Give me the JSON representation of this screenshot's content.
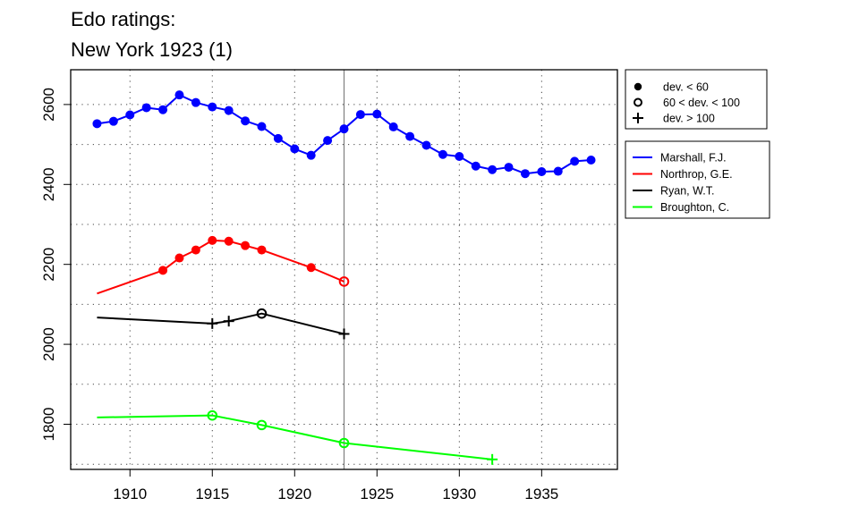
{
  "chart_data": {
    "type": "line",
    "title_lines": [
      "Edo ratings:",
      "New York 1923 (1)"
    ],
    "xlabel": "",
    "ylabel": "",
    "xlim": [
      1906.4,
      1939.6
    ],
    "ylim": [
      1687,
      2687
    ],
    "x_ticks": [
      1910,
      1915,
      1920,
      1925,
      1930,
      1935
    ],
    "y_ticks": [
      1800,
      2000,
      2200,
      2400,
      2600
    ],
    "grid": true,
    "vline_x": 1923,
    "marker_legend": [
      {
        "symbol": "filled-circle",
        "label": "dev. < 60"
      },
      {
        "symbol": "open-circle",
        "label": "60 < dev. < 100"
      },
      {
        "symbol": "plus",
        "label": "dev. > 100"
      }
    ],
    "series": [
      {
        "name": "Marshall, F.J.",
        "color": "#0000ff",
        "points": [
          {
            "x": 1908,
            "y": 2552,
            "m": "filled"
          },
          {
            "x": 1909,
            "y": 2558,
            "m": "filled"
          },
          {
            "x": 1910,
            "y": 2574,
            "m": "filled"
          },
          {
            "x": 1911,
            "y": 2592,
            "m": "filled"
          },
          {
            "x": 1912,
            "y": 2587,
            "m": "filled"
          },
          {
            "x": 1913,
            "y": 2624,
            "m": "filled"
          },
          {
            "x": 1914,
            "y": 2605,
            "m": "filled"
          },
          {
            "x": 1915,
            "y": 2594,
            "m": "filled"
          },
          {
            "x": 1916,
            "y": 2585,
            "m": "filled"
          },
          {
            "x": 1917,
            "y": 2559,
            "m": "filled"
          },
          {
            "x": 1918,
            "y": 2545,
            "m": "filled"
          },
          {
            "x": 1919,
            "y": 2515,
            "m": "filled"
          },
          {
            "x": 1920,
            "y": 2489,
            "m": "filled"
          },
          {
            "x": 1921,
            "y": 2473,
            "m": "filled"
          },
          {
            "x": 1922,
            "y": 2510,
            "m": "filled"
          },
          {
            "x": 1923,
            "y": 2539,
            "m": "filled"
          },
          {
            "x": 1924,
            "y": 2575,
            "m": "filled"
          },
          {
            "x": 1925,
            "y": 2576,
            "m": "filled"
          },
          {
            "x": 1926,
            "y": 2544,
            "m": "filled"
          },
          {
            "x": 1927,
            "y": 2520,
            "m": "filled"
          },
          {
            "x": 1928,
            "y": 2498,
            "m": "filled"
          },
          {
            "x": 1929,
            "y": 2475,
            "m": "filled"
          },
          {
            "x": 1930,
            "y": 2470,
            "m": "filled"
          },
          {
            "x": 1931,
            "y": 2446,
            "m": "filled"
          },
          {
            "x": 1932,
            "y": 2437,
            "m": "filled"
          },
          {
            "x": 1933,
            "y": 2443,
            "m": "filled"
          },
          {
            "x": 1934,
            "y": 2427,
            "m": "filled"
          },
          {
            "x": 1935,
            "y": 2432,
            "m": "filled"
          },
          {
            "x": 1936,
            "y": 2433,
            "m": "filled"
          },
          {
            "x": 1937,
            "y": 2458,
            "m": "filled"
          },
          {
            "x": 1938,
            "y": 2461,
            "m": "filled"
          }
        ]
      },
      {
        "name": "Northrop, G.E.",
        "color": "#ff0000",
        "points": [
          {
            "x": 1908,
            "y": 2127,
            "m": "none"
          },
          {
            "x": 1912,
            "y": 2185,
            "m": "filled"
          },
          {
            "x": 1913,
            "y": 2216,
            "m": "filled"
          },
          {
            "x": 1914,
            "y": 2236,
            "m": "filled"
          },
          {
            "x": 1915,
            "y": 2260,
            "m": "filled"
          },
          {
            "x": 1916,
            "y": 2258,
            "m": "filled"
          },
          {
            "x": 1917,
            "y": 2247,
            "m": "filled"
          },
          {
            "x": 1918,
            "y": 2236,
            "m": "filled"
          },
          {
            "x": 1921,
            "y": 2192,
            "m": "filled"
          },
          {
            "x": 1923,
            "y": 2157,
            "m": "open"
          }
        ]
      },
      {
        "name": "Ryan, W.T.",
        "color": "#000000",
        "points": [
          {
            "x": 1908,
            "y": 2067,
            "m": "none"
          },
          {
            "x": 1915,
            "y": 2052,
            "m": "plus"
          },
          {
            "x": 1916,
            "y": 2058,
            "m": "plus"
          },
          {
            "x": 1918,
            "y": 2077,
            "m": "open"
          },
          {
            "x": 1923,
            "y": 2026,
            "m": "plus"
          }
        ]
      },
      {
        "name": "Broughton, C.",
        "color": "#00ff00",
        "points": [
          {
            "x": 1908,
            "y": 1817,
            "m": "none"
          },
          {
            "x": 1915,
            "y": 1822,
            "m": "open"
          },
          {
            "x": 1918,
            "y": 1798,
            "m": "open"
          },
          {
            "x": 1923,
            "y": 1753,
            "m": "open"
          },
          {
            "x": 1932,
            "y": 1712,
            "m": "plus"
          }
        ]
      }
    ]
  }
}
